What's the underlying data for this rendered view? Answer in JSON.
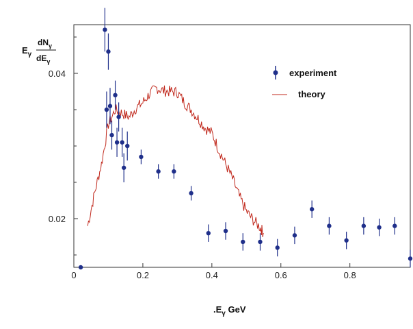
{
  "chart_data": {
    "type": "scatter",
    "xlim": [
      0,
      0.975
    ],
    "ylim": [
      0.0133,
      0.0467
    ],
    "x_ticks": [
      "0",
      "0.2",
      "0.4",
      "0.6",
      "0.8"
    ],
    "y_ticks": [
      "0.02",
      "0.04"
    ],
    "xlabel": {
      "prefix": ".E",
      "sub": "γ",
      "suffix": " GeV"
    },
    "ylabel": {
      "lead": "E",
      "lead_sub": "γ",
      "num": "dN",
      "num_sub": "γ",
      "den": "dE",
      "den_sub": "γ"
    },
    "grid": false,
    "legend_position": "top-right",
    "colors": {
      "experiment": "#1f2f8a",
      "theory": "#c0281c",
      "axis": "#333333"
    },
    "series": [
      {
        "name": "experiment",
        "kind": "errorbar",
        "points": [
          {
            "x": 0.02,
            "y": 0.0133,
            "err": 0.0
          },
          {
            "x": 0.09,
            "y": 0.046,
            "err": 0.003
          },
          {
            "x": 0.1,
            "y": 0.043,
            "err": 0.0025
          },
          {
            "x": 0.095,
            "y": 0.035,
            "err": 0.0025
          },
          {
            "x": 0.105,
            "y": 0.0355,
            "err": 0.0025
          },
          {
            "x": 0.11,
            "y": 0.0315,
            "err": 0.002
          },
          {
            "x": 0.12,
            "y": 0.037,
            "err": 0.002
          },
          {
            "x": 0.125,
            "y": 0.0305,
            "err": 0.002
          },
          {
            "x": 0.13,
            "y": 0.034,
            "err": 0.002
          },
          {
            "x": 0.14,
            "y": 0.0305,
            "err": 0.002
          },
          {
            "x": 0.145,
            "y": 0.027,
            "err": 0.002
          },
          {
            "x": 0.155,
            "y": 0.03,
            "err": 0.002
          },
          {
            "x": 0.195,
            "y": 0.0285,
            "err": 0.001
          },
          {
            "x": 0.245,
            "y": 0.0265,
            "err": 0.001
          },
          {
            "x": 0.29,
            "y": 0.0265,
            "err": 0.001
          },
          {
            "x": 0.34,
            "y": 0.0235,
            "err": 0.001
          },
          {
            "x": 0.39,
            "y": 0.018,
            "err": 0.0012
          },
          {
            "x": 0.44,
            "y": 0.0183,
            "err": 0.0012
          },
          {
            "x": 0.49,
            "y": 0.0168,
            "err": 0.0012
          },
          {
            "x": 0.54,
            "y": 0.0168,
            "err": 0.0012
          },
          {
            "x": 0.59,
            "y": 0.016,
            "err": 0.0012
          },
          {
            "x": 0.64,
            "y": 0.0177,
            "err": 0.0012
          },
          {
            "x": 0.69,
            "y": 0.0213,
            "err": 0.0012
          },
          {
            "x": 0.74,
            "y": 0.019,
            "err": 0.0012
          },
          {
            "x": 0.79,
            "y": 0.017,
            "err": 0.0012
          },
          {
            "x": 0.84,
            "y": 0.019,
            "err": 0.0012
          },
          {
            "x": 0.885,
            "y": 0.0188,
            "err": 0.0012
          },
          {
            "x": 0.93,
            "y": 0.019,
            "err": 0.0012
          },
          {
            "x": 0.975,
            "y": 0.0145,
            "err": 0.0012
          }
        ]
      },
      {
        "name": "theory",
        "kind": "line",
        "x": [
          0.04,
          0.06,
          0.08,
          0.1,
          0.12,
          0.14,
          0.16,
          0.18,
          0.2,
          0.22,
          0.24,
          0.26,
          0.28,
          0.3,
          0.32,
          0.34,
          0.36,
          0.38,
          0.4,
          0.42,
          0.44,
          0.46,
          0.48,
          0.5,
          0.52,
          0.54,
          0.55
        ],
        "y": [
          0.019,
          0.0235,
          0.0275,
          0.033,
          0.035,
          0.0345,
          0.034,
          0.0352,
          0.036,
          0.0372,
          0.038,
          0.0376,
          0.0375,
          0.0374,
          0.036,
          0.035,
          0.0338,
          0.0325,
          0.0318,
          0.0295,
          0.0275,
          0.0255,
          0.023,
          0.021,
          0.0198,
          0.0188,
          0.018
        ]
      }
    ]
  }
}
